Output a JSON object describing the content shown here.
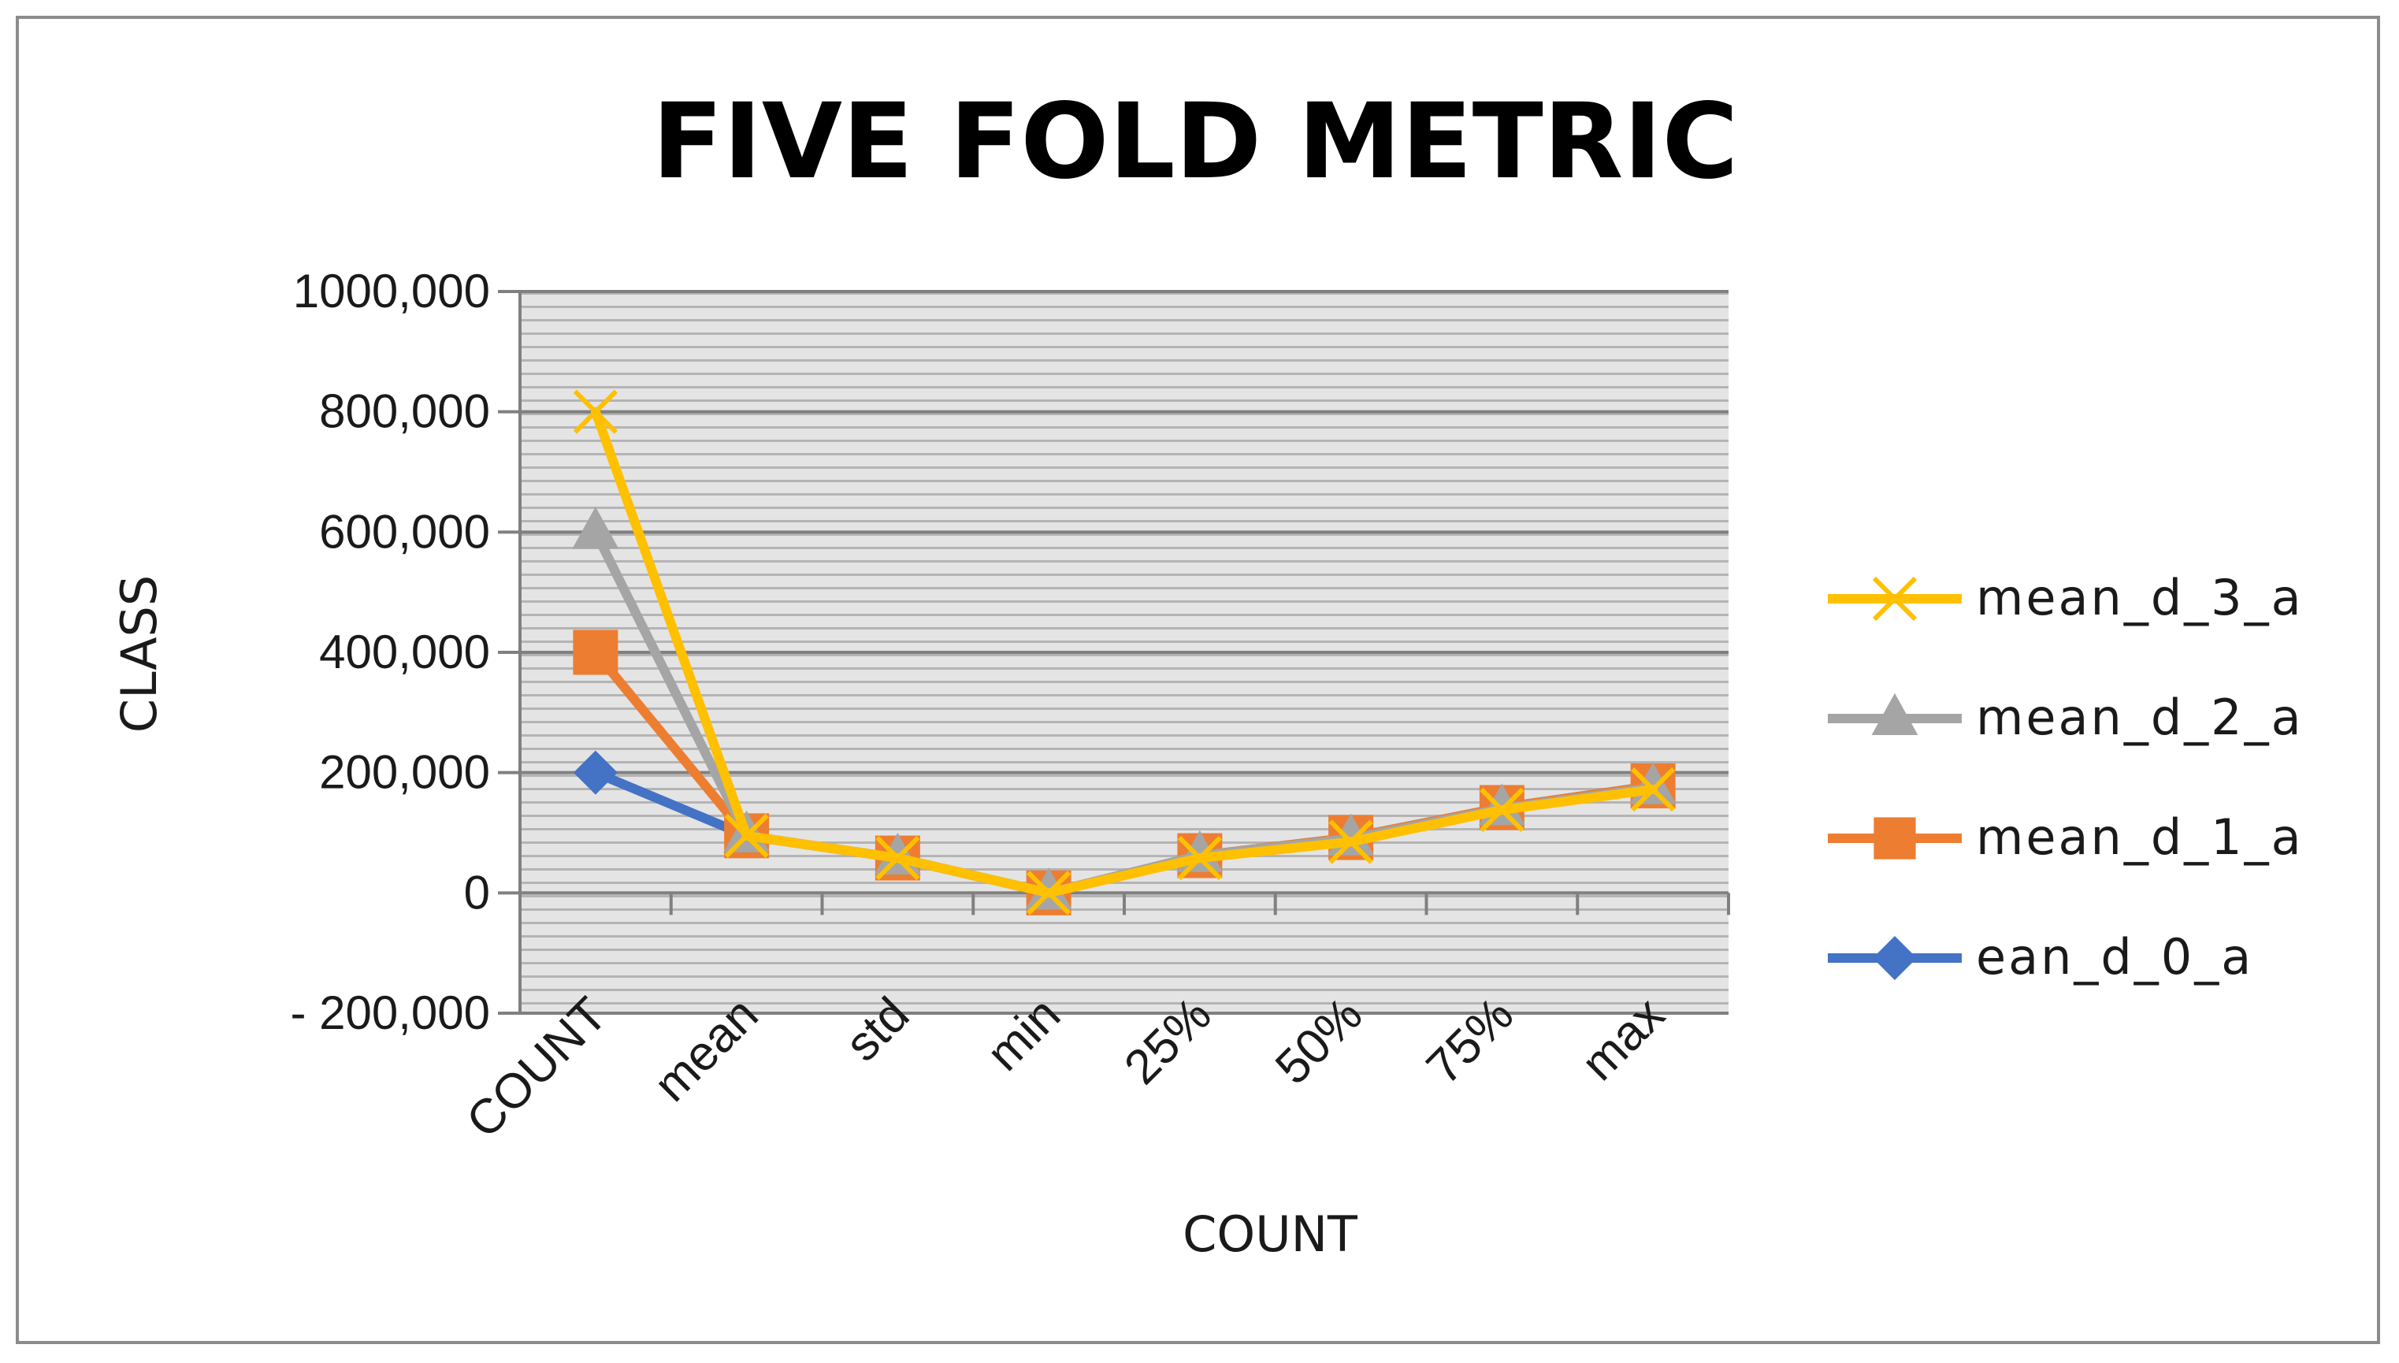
{
  "chart_data": {
    "type": "line",
    "title": "FIVE FOLD METRIC",
    "xlabel": "COUNT",
    "ylabel": "CLASS",
    "categories": [
      "COUNT",
      "mean",
      "std",
      "min",
      "25%",
      "50%",
      "75%",
      "max"
    ],
    "ylim": [
      -200000,
      1000000
    ],
    "yticks": [
      1000000,
      800000,
      600000,
      400000,
      200000,
      0,
      -200000
    ],
    "ytick_labels": [
      "1000,000",
      "800,000",
      "600,000",
      "400,000",
      "200,000",
      "0",
      "- 200,000"
    ],
    "grid": true,
    "legend_position": "right",
    "series": [
      {
        "name": "mean_d_3_a",
        "color": "#FFC000",
        "marker": "x",
        "values": [
          800000,
          95000,
          58000,
          0,
          58000,
          85000,
          138000,
          172000
        ]
      },
      {
        "name": "mean_d_2_a",
        "color": "#A5A5A5",
        "marker": "triangle",
        "values": [
          600000,
          95000,
          58000,
          0,
          62000,
          90000,
          140000,
          175000
        ]
      },
      {
        "name": "mean_d_1_a",
        "color": "#ED7D31",
        "marker": "square",
        "values": [
          400000,
          95000,
          58000,
          0,
          62000,
          92000,
          142000,
          178000
        ]
      },
      {
        "name": "ean_d_0_a",
        "color": "#4472C4",
        "marker": "diamond",
        "values": [
          200000,
          95000,
          58000,
          0,
          62000,
          92000,
          142000,
          178000
        ]
      }
    ]
  }
}
